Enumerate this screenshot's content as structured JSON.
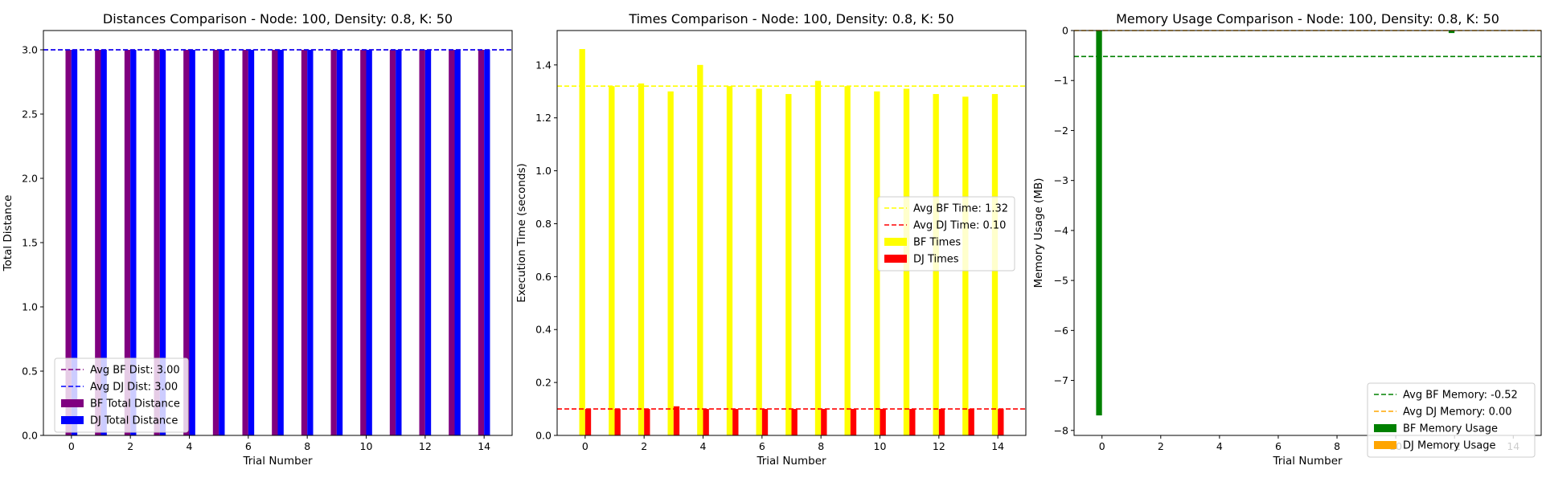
{
  "chart_data": [
    {
      "type": "bar",
      "title": "Distances Comparison - Node: 100, Density: 0.8, K: 50",
      "xlabel": "Trial Number",
      "ylabel": "Total Distance",
      "xlim": [
        -0.95,
        14.95
      ],
      "ylim": [
        0,
        3.15
      ],
      "xticks": [
        0,
        2,
        4,
        6,
        8,
        10,
        12,
        14
      ],
      "yticks": [
        0.0,
        0.5,
        1.0,
        1.5,
        2.0,
        2.5,
        3.0
      ],
      "ytick_decimals": 1,
      "x": [
        0,
        1,
        2,
        3,
        4,
        5,
        6,
        7,
        8,
        9,
        10,
        11,
        12,
        13,
        14
      ],
      "series": [
        {
          "name": "BF Total Distance",
          "color": "#800080",
          "values": [
            3,
            3,
            3,
            3,
            3,
            3,
            3,
            3,
            3,
            3,
            3,
            3,
            3,
            3,
            3
          ]
        },
        {
          "name": "DJ Total Distance",
          "color": "#0000ff",
          "values": [
            3,
            3,
            3,
            3,
            3,
            3,
            3,
            3,
            3,
            3,
            3,
            3,
            3,
            3,
            3
          ]
        }
      ],
      "reference_lines": [
        {
          "name": "Avg BF Dist: 3.00",
          "value": 3.0,
          "color": "#800080"
        },
        {
          "name": "Avg DJ Dist: 3.00",
          "value": 3.0,
          "color": "#0000ff"
        }
      ],
      "legend": "lower-left",
      "grid": false
    },
    {
      "type": "bar",
      "title": "Times Comparison - Node: 100, Density: 0.8, K: 50",
      "xlabel": "Trial Number",
      "ylabel": "Execution Time (seconds)",
      "xlim": [
        -0.95,
        14.95
      ],
      "ylim": [
        0,
        1.53
      ],
      "xticks": [
        0,
        2,
        4,
        6,
        8,
        10,
        12,
        14
      ],
      "yticks": [
        0.0,
        0.2,
        0.4,
        0.6,
        0.8,
        1.0,
        1.2,
        1.4
      ],
      "ytick_decimals": 1,
      "x": [
        0,
        1,
        2,
        3,
        4,
        5,
        6,
        7,
        8,
        9,
        10,
        11,
        12,
        13,
        14
      ],
      "series": [
        {
          "name": "BF Times",
          "color": "#ffff00",
          "values": [
            1.46,
            1.32,
            1.33,
            1.3,
            1.4,
            1.32,
            1.31,
            1.29,
            1.34,
            1.32,
            1.3,
            1.31,
            1.29,
            1.28,
            1.29
          ]
        },
        {
          "name": "DJ Times",
          "color": "#ff0000",
          "values": [
            0.1,
            0.1,
            0.1,
            0.11,
            0.1,
            0.1,
            0.1,
            0.1,
            0.1,
            0.1,
            0.1,
            0.1,
            0.1,
            0.1,
            0.1
          ]
        }
      ],
      "reference_lines": [
        {
          "name": "Avg BF Time: 1.32",
          "value": 1.32,
          "color": "#ffff00"
        },
        {
          "name": "Avg DJ Time: 0.10",
          "value": 0.1,
          "color": "#ff0000"
        }
      ],
      "legend": "center-right",
      "grid": false
    },
    {
      "type": "bar",
      "title": "Memory Usage Comparison - Node: 100, Density: 0.8, K: 50",
      "xlabel": "Trial Number",
      "ylabel": "Memory Usage (MB)",
      "xlim": [
        -0.95,
        14.95
      ],
      "ylim": [
        -8.1,
        0
      ],
      "xticks": [
        0,
        2,
        4,
        6,
        8,
        10,
        12,
        14
      ],
      "yticks": [
        0,
        -1,
        -2,
        -3,
        -4,
        -5,
        -6,
        -7,
        -8
      ],
      "ytick_decimals": 0,
      "x": [
        0,
        1,
        2,
        3,
        4,
        5,
        6,
        7,
        8,
        9,
        10,
        11,
        12,
        13,
        14
      ],
      "series": [
        {
          "name": "BF Memory Usage",
          "color": "#008000",
          "values": [
            -7.7,
            0,
            0,
            0,
            0,
            0,
            0,
            0,
            0,
            0,
            0,
            0,
            -0.05,
            0,
            0
          ]
        },
        {
          "name": "DJ Memory Usage",
          "color": "#ffa500",
          "values": [
            0,
            0,
            0,
            0,
            0,
            0,
            0,
            0,
            0,
            0,
            0,
            0,
            0,
            0,
            0
          ]
        }
      ],
      "reference_lines": [
        {
          "name": "Avg BF Memory: -0.52",
          "value": -0.52,
          "color": "#008000"
        },
        {
          "name": "Avg DJ Memory: 0.00",
          "value": 0.0,
          "color": "#ffa500"
        }
      ],
      "legend": "lower-right",
      "grid": false
    }
  ]
}
